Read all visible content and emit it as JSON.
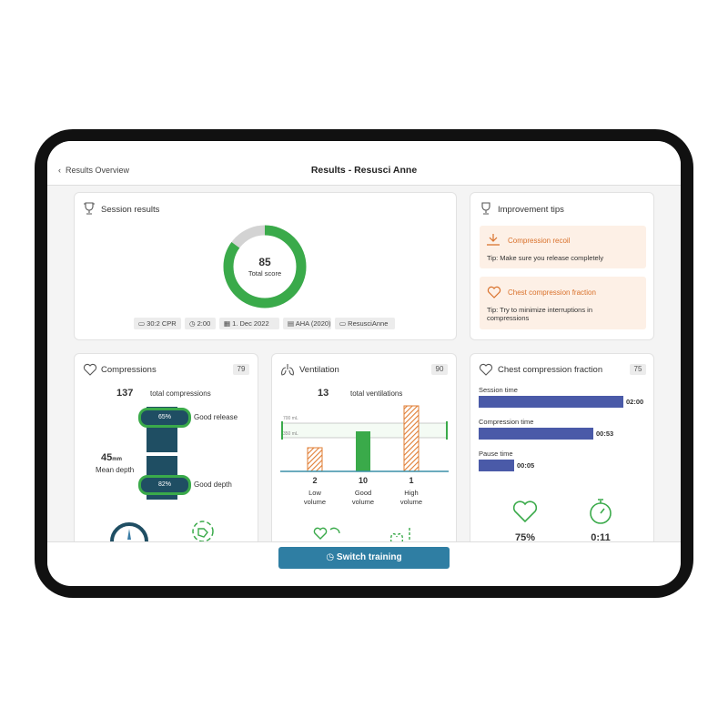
{
  "header": {
    "back": "Results Overview",
    "title": "Results - Resusci Anne"
  },
  "session": {
    "title": "Session results",
    "score": 85,
    "score_label": "Total score",
    "tags": [
      "30:2 CPR",
      "2:00",
      "1. Dec 2022",
      "AHA (2020)",
      "ResusciAnne"
    ]
  },
  "tips": {
    "title": "Improvement tips",
    "items": [
      {
        "title": "Compression recoil",
        "text": "Tip: Make sure you release completely"
      },
      {
        "title": "Chest compression fraction",
        "text": "Tip: Try to minimize interruptions in compressions"
      }
    ]
  },
  "compressions": {
    "title": "Compressions",
    "score": 79,
    "total": 137,
    "total_label": "total compressions",
    "release": "65%",
    "release_label": "Good release",
    "depth": "82%",
    "depth_label": "Good depth",
    "mean_depth": 45,
    "mean_depth_unit": "mm",
    "mean_depth_label": "Mean depth"
  },
  "ventilation": {
    "title": "Ventilation",
    "score": 90,
    "total": 13,
    "total_label": "total ventilations",
    "lines": [
      "700 mL",
      "350 mL"
    ],
    "bars": [
      {
        "count": 2,
        "label": "Low volume"
      },
      {
        "count": 10,
        "label": "Good volume"
      },
      {
        "count": 1,
        "label": "High volume"
      }
    ]
  },
  "ccf": {
    "title": "Chest compression fraction",
    "score": 75,
    "rows": [
      {
        "label": "Session time",
        "value": "02:00"
      },
      {
        "label": "Compression time",
        "value": "00:53"
      },
      {
        "label": "Pause time",
        "value": "00:05"
      }
    ],
    "fraction": "75%",
    "pause": "0:11"
  },
  "footer": {
    "button": "Switch training"
  }
}
